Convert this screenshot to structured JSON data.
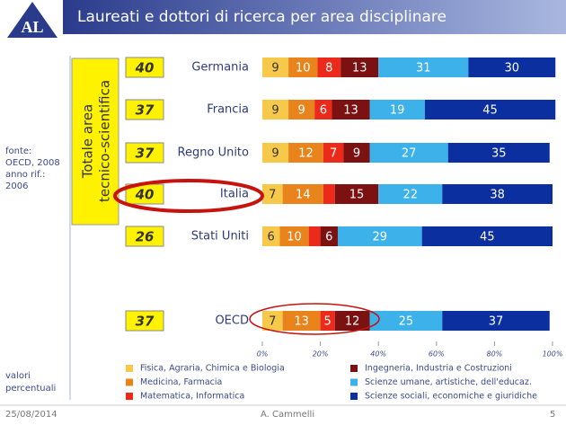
{
  "header": {
    "logo": "AL",
    "title": "Laureati e dottori di ricerca per area disciplinare"
  },
  "source": [
    "fonte:",
    "OECD, 2008",
    "anno rif.:",
    "2006"
  ],
  "unit_note": [
    "valori",
    "percentuali"
  ],
  "totals_label": [
    "Totale area",
    "tecnico-scientifica"
  ],
  "totals": [
    40,
    37,
    37,
    40,
    26,
    37
  ],
  "chart_data": {
    "type": "stacked-bar-horizontal",
    "categories": [
      "Germania",
      "Francia",
      "Regno Unito",
      "Italia",
      "Stati Uniti",
      "OECD"
    ],
    "series": [
      {
        "name": "Fisica, Agraria, Chimica e Biologia",
        "color": "#f7c94a",
        "values": [
          9,
          9,
          9,
          7,
          6,
          7
        ]
      },
      {
        "name": "Medicina, Farmacia",
        "color": "#e9841c",
        "values": [
          10,
          9,
          12,
          14,
          10,
          13
        ]
      },
      {
        "name": "Matematica, Informatica",
        "color": "#ec2a1c",
        "values": [
          8,
          6,
          7,
          4,
          4,
          5
        ],
        "value_labels": [
          "8",
          "6",
          "7",
          null,
          null,
          "5"
        ]
      },
      {
        "name": "Ingegneria, Industria e Costruzioni",
        "color": "#7c1111",
        "values": [
          13,
          13,
          9,
          15,
          6,
          12
        ]
      },
      {
        "name": "Scienze umane, artistiche, dell'educaz.",
        "color": "#3cb1ea",
        "values": [
          31,
          19,
          27,
          22,
          29,
          25
        ]
      },
      {
        "name": "Scienze sociali, economiche e giuridiche",
        "color": "#0b2f9f",
        "values": [
          30,
          45,
          35,
          38,
          45,
          37
        ]
      }
    ],
    "xlim": [
      0,
      100
    ],
    "xticks": [
      {
        "value": 0,
        "label": "0%"
      },
      {
        "value": 20,
        "label": "20%"
      },
      {
        "value": 40,
        "label": "40%"
      },
      {
        "value": 60,
        "label": "60%"
      },
      {
        "value": 80,
        "label": "80%"
      },
      {
        "value": 100,
        "label": "100%"
      }
    ]
  },
  "footer": {
    "date": "25/08/2014",
    "author": "A. Cammelli",
    "page": "5"
  }
}
